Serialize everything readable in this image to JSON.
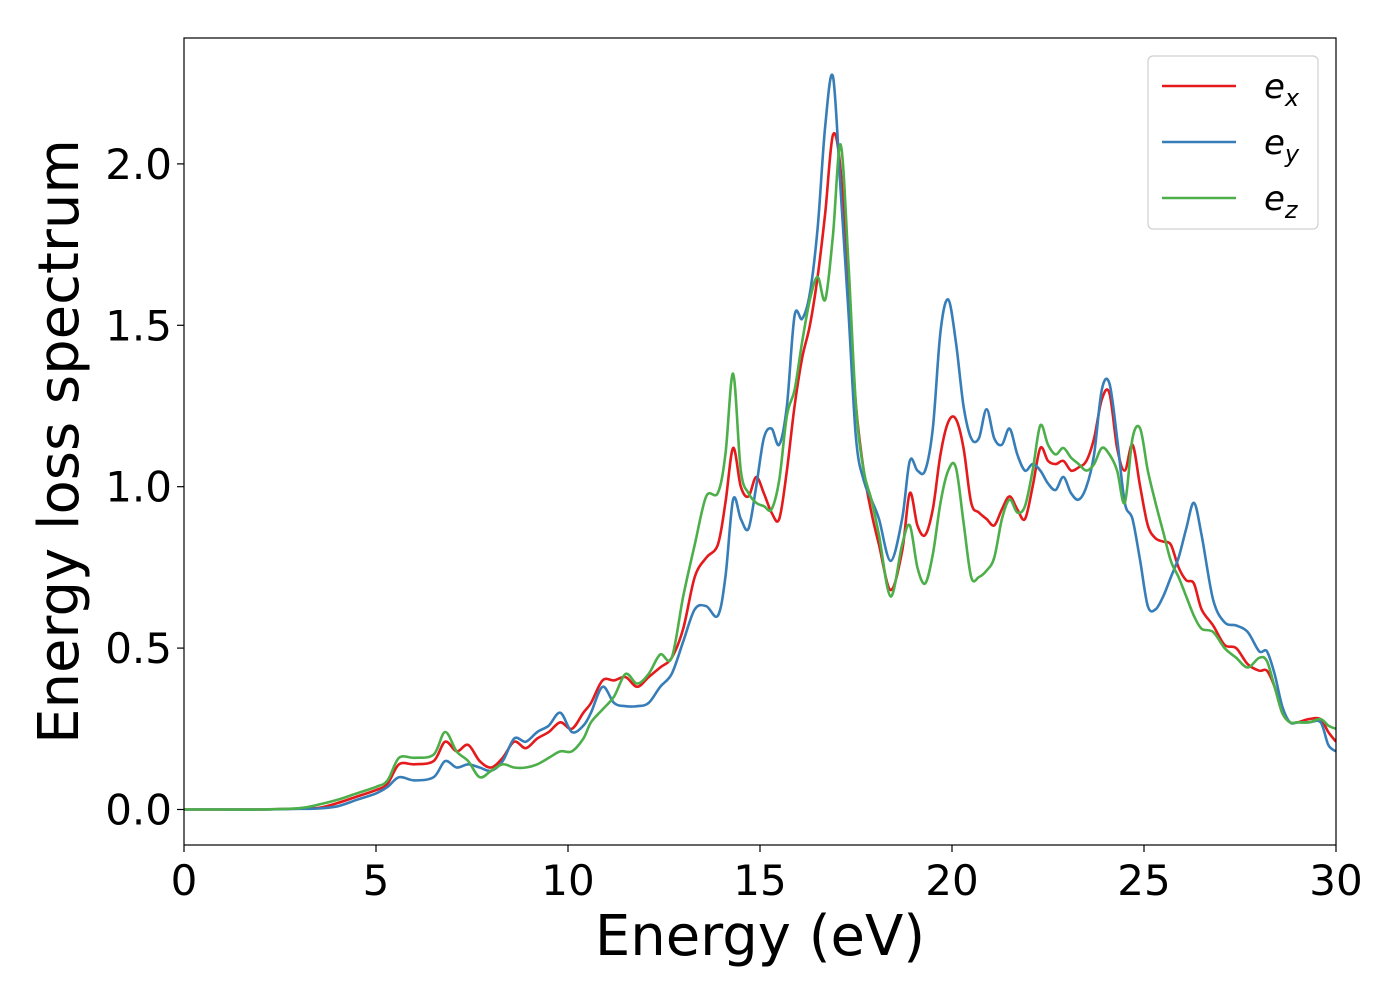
{
  "chart_data": {
    "type": "line",
    "title": "",
    "xlabel": "Energy (eV)",
    "ylabel": "Energy loss spectrum",
    "xlim": [
      0,
      30
    ],
    "ylim": [
      -0.11,
      2.39
    ],
    "xticks": [
      0,
      5,
      10,
      15,
      20,
      25,
      30
    ],
    "yticks": [
      0.0,
      0.5,
      1.0,
      1.5,
      2.0
    ],
    "xtick_labels": [
      "0",
      "5",
      "10",
      "15",
      "20",
      "25",
      "30"
    ],
    "ytick_labels": [
      "0.0",
      "0.5",
      "1.0",
      "1.5",
      "2.0"
    ],
    "grid": false,
    "legend_position": "top-right",
    "series": [
      {
        "name": "e_x",
        "label_base": "e",
        "label_sub": "x",
        "color": "#e41a1c",
        "x": [
          0,
          1,
          2,
          3,
          3.5,
          4,
          4.5,
          5,
          5.3,
          5.6,
          6,
          6.5,
          6.8,
          7.1,
          7.4,
          7.7,
          8,
          8.3,
          8.6,
          8.9,
          9.2,
          9.5,
          9.8,
          10.1,
          10.4,
          10.6,
          10.9,
          11.2,
          11.5,
          11.8,
          12.1,
          12.4,
          12.7,
          13,
          13.3,
          13.6,
          13.9,
          14.1,
          14.3,
          14.5,
          14.7,
          14.9,
          15.1,
          15.3,
          15.5,
          15.7,
          15.9,
          16.1,
          16.3,
          16.5,
          16.7,
          16.9,
          17.1,
          17.3,
          17.5,
          17.7,
          17.9,
          18.1,
          18.4,
          18.7,
          18.9,
          19.1,
          19.3,
          19.5,
          19.7,
          19.9,
          20.1,
          20.3,
          20.5,
          20.7,
          20.9,
          21.1,
          21.3,
          21.5,
          21.7,
          21.9,
          22.1,
          22.3,
          22.5,
          22.7,
          22.9,
          23.1,
          23.3,
          23.5,
          23.7,
          23.9,
          24.1,
          24.3,
          24.5,
          24.7,
          24.9,
          25.1,
          25.3,
          25.5,
          25.7,
          25.9,
          26.1,
          26.3,
          26.5,
          26.8,
          27.1,
          27.4,
          27.7,
          28,
          28.2,
          28.4,
          28.6,
          28.8,
          29,
          29.3,
          29.6,
          29.8,
          30
        ],
        "y": [
          0,
          0,
          0,
          0.003,
          0.005,
          0.02,
          0.04,
          0.06,
          0.08,
          0.14,
          0.14,
          0.15,
          0.21,
          0.18,
          0.2,
          0.15,
          0.13,
          0.16,
          0.21,
          0.19,
          0.22,
          0.24,
          0.27,
          0.25,
          0.3,
          0.33,
          0.4,
          0.4,
          0.41,
          0.38,
          0.41,
          0.44,
          0.47,
          0.56,
          0.72,
          0.78,
          0.82,
          0.95,
          1.12,
          1.0,
          0.97,
          1.03,
          0.98,
          0.92,
          0.9,
          1.05,
          1.25,
          1.4,
          1.5,
          1.65,
          1.85,
          2.09,
          1.98,
          1.6,
          1.25,
          1.05,
          0.92,
          0.82,
          0.68,
          0.8,
          0.98,
          0.88,
          0.85,
          0.93,
          1.1,
          1.2,
          1.21,
          1.12,
          0.95,
          0.92,
          0.9,
          0.88,
          0.93,
          0.97,
          0.93,
          0.9,
          1.0,
          1.12,
          1.08,
          1.07,
          1.08,
          1.05,
          1.06,
          1.08,
          1.15,
          1.27,
          1.29,
          1.12,
          1.05,
          1.13,
          1.0,
          0.88,
          0.84,
          0.83,
          0.82,
          0.75,
          0.71,
          0.7,
          0.62,
          0.57,
          0.51,
          0.5,
          0.45,
          0.43,
          0.43,
          0.38,
          0.3,
          0.27,
          0.27,
          0.28,
          0.28,
          0.24,
          0.21
        ]
      },
      {
        "name": "e_y",
        "label_base": "e",
        "label_sub": "y",
        "color": "#377eb8",
        "x": [
          0,
          1,
          2,
          3,
          3.5,
          4,
          4.5,
          5,
          5.3,
          5.6,
          6,
          6.5,
          6.8,
          7.1,
          7.4,
          7.7,
          8,
          8.3,
          8.6,
          8.9,
          9.2,
          9.5,
          9.8,
          10.1,
          10.4,
          10.6,
          10.9,
          11.2,
          11.5,
          11.8,
          12.1,
          12.4,
          12.7,
          13,
          13.3,
          13.6,
          13.9,
          14.1,
          14.3,
          14.5,
          14.7,
          14.9,
          15.1,
          15.3,
          15.5,
          15.7,
          15.9,
          16.1,
          16.3,
          16.5,
          16.7,
          16.9,
          17.1,
          17.3,
          17.5,
          17.7,
          17.9,
          18.1,
          18.4,
          18.7,
          18.9,
          19.1,
          19.3,
          19.5,
          19.7,
          19.9,
          20.1,
          20.3,
          20.5,
          20.7,
          20.9,
          21.1,
          21.3,
          21.5,
          21.7,
          21.9,
          22.1,
          22.3,
          22.5,
          22.7,
          22.9,
          23.1,
          23.3,
          23.5,
          23.7,
          23.9,
          24.1,
          24.3,
          24.5,
          24.7,
          24.9,
          25.1,
          25.3,
          25.5,
          25.7,
          25.9,
          26.1,
          26.3,
          26.5,
          26.8,
          27.1,
          27.4,
          27.7,
          28,
          28.2,
          28.4,
          28.6,
          28.8,
          29,
          29.3,
          29.6,
          29.8,
          30
        ],
        "y": [
          0,
          0,
          0,
          0.002,
          0.003,
          0.01,
          0.03,
          0.05,
          0.07,
          0.1,
          0.09,
          0.1,
          0.15,
          0.13,
          0.14,
          0.13,
          0.12,
          0.15,
          0.22,
          0.21,
          0.24,
          0.26,
          0.3,
          0.24,
          0.26,
          0.3,
          0.38,
          0.33,
          0.32,
          0.32,
          0.33,
          0.38,
          0.42,
          0.52,
          0.62,
          0.63,
          0.6,
          0.72,
          0.96,
          0.9,
          0.87,
          1.0,
          1.15,
          1.18,
          1.13,
          1.25,
          1.53,
          1.52,
          1.6,
          1.8,
          2.12,
          2.27,
          1.92,
          1.55,
          1.15,
          1.02,
          0.96,
          0.9,
          0.77,
          0.9,
          1.08,
          1.05,
          1.05,
          1.18,
          1.48,
          1.58,
          1.45,
          1.25,
          1.15,
          1.15,
          1.24,
          1.15,
          1.13,
          1.18,
          1.1,
          1.05,
          1.07,
          1.05,
          1.01,
          0.99,
          1.03,
          0.98,
          0.96,
          1.0,
          1.1,
          1.3,
          1.32,
          1.15,
          0.95,
          0.9,
          0.77,
          0.63,
          0.62,
          0.66,
          0.72,
          0.78,
          0.87,
          0.95,
          0.85,
          0.65,
          0.58,
          0.57,
          0.55,
          0.49,
          0.49,
          0.42,
          0.32,
          0.27,
          0.27,
          0.27,
          0.27,
          0.2,
          0.18
        ]
      },
      {
        "name": "e_z",
        "label_base": "e",
        "label_sub": "z",
        "color": "#4daf4a",
        "x": [
          0,
          1,
          2,
          3,
          3.5,
          4,
          4.5,
          5,
          5.3,
          5.6,
          6,
          6.5,
          6.8,
          7.1,
          7.4,
          7.7,
          8,
          8.3,
          8.6,
          8.9,
          9.2,
          9.5,
          9.8,
          10.1,
          10.4,
          10.6,
          10.9,
          11.2,
          11.5,
          11.8,
          12.1,
          12.4,
          12.7,
          13,
          13.3,
          13.6,
          13.9,
          14.1,
          14.3,
          14.5,
          14.7,
          14.9,
          15.1,
          15.3,
          15.5,
          15.7,
          15.9,
          16.1,
          16.3,
          16.5,
          16.7,
          16.9,
          17.1,
          17.3,
          17.5,
          17.7,
          17.9,
          18.1,
          18.4,
          18.7,
          18.9,
          19.1,
          19.3,
          19.5,
          19.7,
          19.9,
          20.1,
          20.3,
          20.5,
          20.7,
          20.9,
          21.1,
          21.3,
          21.5,
          21.7,
          21.9,
          22.1,
          22.3,
          22.5,
          22.7,
          22.9,
          23.1,
          23.3,
          23.5,
          23.7,
          23.9,
          24.1,
          24.3,
          24.5,
          24.7,
          24.9,
          25.1,
          25.3,
          25.5,
          25.7,
          25.9,
          26.1,
          26.3,
          26.5,
          26.8,
          27.1,
          27.4,
          27.7,
          28,
          28.2,
          28.4,
          28.6,
          28.8,
          29,
          29.3,
          29.6,
          29.8,
          30
        ],
        "y": [
          0,
          0,
          0,
          0.004,
          0.015,
          0.03,
          0.05,
          0.07,
          0.09,
          0.16,
          0.16,
          0.17,
          0.24,
          0.18,
          0.15,
          0.1,
          0.12,
          0.14,
          0.13,
          0.13,
          0.14,
          0.16,
          0.18,
          0.18,
          0.22,
          0.27,
          0.31,
          0.35,
          0.42,
          0.39,
          0.42,
          0.48,
          0.47,
          0.66,
          0.82,
          0.97,
          0.98,
          1.1,
          1.35,
          1.05,
          0.98,
          0.95,
          0.94,
          0.93,
          1.02,
          1.22,
          1.3,
          1.45,
          1.58,
          1.65,
          1.58,
          1.78,
          2.06,
          1.7,
          1.25,
          1.05,
          0.96,
          0.85,
          0.66,
          0.82,
          0.88,
          0.75,
          0.7,
          0.79,
          0.95,
          1.05,
          1.06,
          0.89,
          0.72,
          0.72,
          0.74,
          0.78,
          0.9,
          0.96,
          0.92,
          0.94,
          1.05,
          1.19,
          1.13,
          1.1,
          1.12,
          1.09,
          1.07,
          1.05,
          1.07,
          1.12,
          1.1,
          1.05,
          0.95,
          1.15,
          1.18,
          1.05,
          0.95,
          0.86,
          0.77,
          0.72,
          0.66,
          0.6,
          0.56,
          0.55,
          0.5,
          0.47,
          0.44,
          0.47,
          0.46,
          0.38,
          0.3,
          0.27,
          0.27,
          0.27,
          0.28,
          0.26,
          0.25
        ]
      }
    ]
  }
}
